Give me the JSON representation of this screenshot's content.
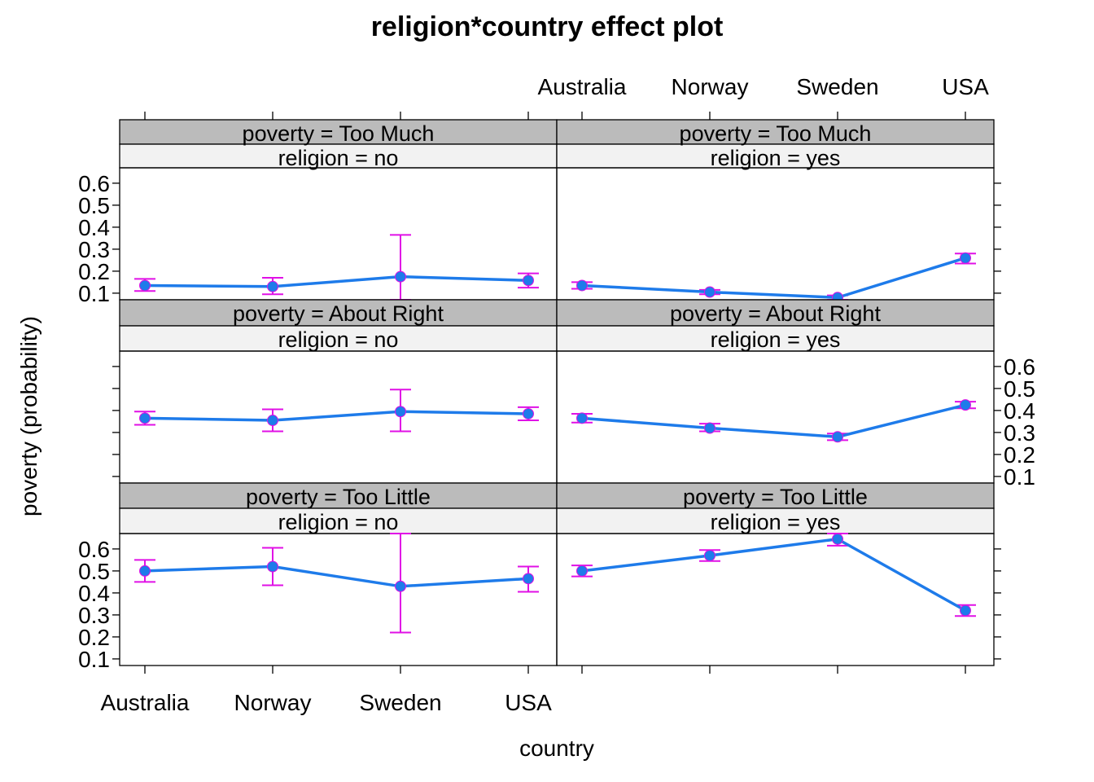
{
  "chart_data": {
    "type": "line",
    "title": "religion*country effect plot",
    "xlabel": "country",
    "ylabel": "poverty (probability)",
    "categories": [
      "Australia",
      "Norway",
      "Sweden",
      "USA"
    ],
    "yticks": [
      "0.1",
      "0.2",
      "0.3",
      "0.4",
      "0.5",
      "0.6"
    ],
    "ylim": [
      0.07,
      0.67
    ],
    "panels": [
      {
        "strip_top": "poverty = Too Much",
        "strip_bottom": "religion = no",
        "fit": [
          0.135,
          0.13,
          0.175,
          0.158
        ],
        "lower": [
          0.11,
          0.095,
          0.07,
          0.125
        ],
        "upper": [
          0.165,
          0.17,
          0.365,
          0.19
        ]
      },
      {
        "strip_top": "poverty = Too Much",
        "strip_bottom": "religion = yes",
        "fit": [
          0.135,
          0.105,
          0.08,
          0.26
        ],
        "lower": [
          0.12,
          0.095,
          0.07,
          0.235
        ],
        "upper": [
          0.15,
          0.115,
          0.09,
          0.28
        ]
      },
      {
        "strip_top": "poverty = About Right",
        "strip_bottom": "religion = no",
        "fit": [
          0.365,
          0.355,
          0.395,
          0.385
        ],
        "lower": [
          0.335,
          0.305,
          0.305,
          0.355
        ],
        "upper": [
          0.395,
          0.405,
          0.495,
          0.415
        ]
      },
      {
        "strip_top": "poverty = About Right",
        "strip_bottom": "religion = yes",
        "fit": [
          0.365,
          0.32,
          0.28,
          0.425
        ],
        "lower": [
          0.345,
          0.305,
          0.265,
          0.41
        ],
        "upper": [
          0.385,
          0.34,
          0.295,
          0.44
        ]
      },
      {
        "strip_top": "poverty = Too Little",
        "strip_bottom": "religion = no",
        "fit": [
          0.5,
          0.52,
          0.43,
          0.465
        ],
        "lower": [
          0.45,
          0.435,
          0.22,
          0.405
        ],
        "upper": [
          0.55,
          0.605,
          0.67,
          0.52
        ]
      },
      {
        "strip_top": "poverty = Too Little",
        "strip_bottom": "religion = yes",
        "fit": [
          0.5,
          0.57,
          0.645,
          0.32
        ],
        "lower": [
          0.475,
          0.545,
          0.615,
          0.295
        ],
        "upper": [
          0.525,
          0.595,
          0.67,
          0.345
        ]
      }
    ],
    "colors": {
      "line": "#1E7BEA",
      "errorbar": "#E010E6",
      "strip_top": "#BBBBBB",
      "strip_bottom": "#F2F2F2"
    }
  }
}
